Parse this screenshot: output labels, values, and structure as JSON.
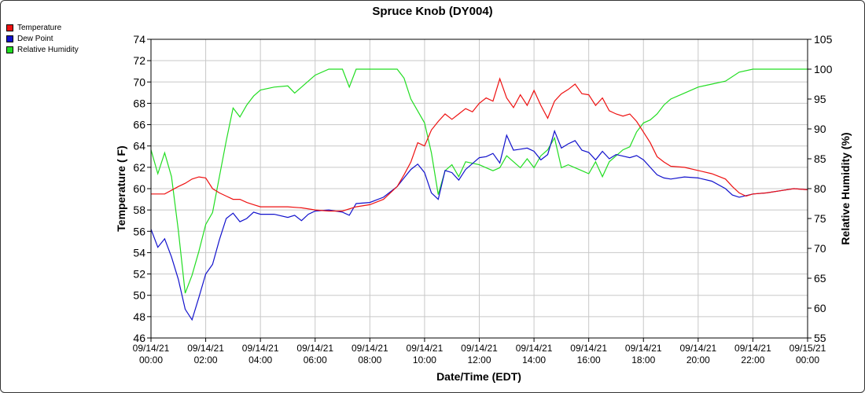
{
  "chart_data": {
    "type": "line",
    "title": "Spruce Knob (DY004)",
    "xlabel": "Date/Time (EDT)",
    "ylabel_left": "Temperature ( F)",
    "ylabel_right": "Relative Humidity (%)",
    "ylim_left": [
      46,
      74
    ],
    "ylim_right": [
      55,
      105
    ],
    "left_ticks": [
      "46",
      "48",
      "50",
      "52",
      "54",
      "56",
      "58",
      "60",
      "62",
      "64",
      "66",
      "68",
      "70",
      "72",
      "74"
    ],
    "right_ticks": [
      "55",
      "60",
      "65",
      "70",
      "75",
      "80",
      "85",
      "90",
      "95",
      "100",
      "105"
    ],
    "x_ticks": [
      {
        "date": "09/14/21",
        "time": "00:00"
      },
      {
        "date": "09/14/21",
        "time": "02:00"
      },
      {
        "date": "09/14/21",
        "time": "04:00"
      },
      {
        "date": "09/14/21",
        "time": "06:00"
      },
      {
        "date": "09/14/21",
        "time": "08:00"
      },
      {
        "date": "09/14/21",
        "time": "10:00"
      },
      {
        "date": "09/14/21",
        "time": "12:00"
      },
      {
        "date": "09/14/21",
        "time": "14:00"
      },
      {
        "date": "09/14/21",
        "time": "16:00"
      },
      {
        "date": "09/14/21",
        "time": "18:00"
      },
      {
        "date": "09/14/21",
        "time": "20:00"
      },
      {
        "date": "09/14/21",
        "time": "22:00"
      },
      {
        "date": "09/15/21",
        "time": "00:00"
      }
    ],
    "grid": true,
    "legend_position": "top-left",
    "series": [
      {
        "name": "Temperature",
        "color": "#ee1111",
        "axis": "left",
        "points": [
          [
            0,
            59.5
          ],
          [
            0.5,
            59.5
          ],
          [
            1,
            60.2
          ],
          [
            1.25,
            60.5
          ],
          [
            1.5,
            60.9
          ],
          [
            1.75,
            61.1
          ],
          [
            2,
            61.0
          ],
          [
            2.25,
            60.0
          ],
          [
            2.5,
            59.6
          ],
          [
            2.75,
            59.3
          ],
          [
            3,
            59.0
          ],
          [
            3.25,
            59.0
          ],
          [
            3.5,
            58.7
          ],
          [
            3.75,
            58.5
          ],
          [
            4,
            58.3
          ],
          [
            4.5,
            58.3
          ],
          [
            5,
            58.3
          ],
          [
            5.5,
            58.2
          ],
          [
            6,
            58.0
          ],
          [
            6.5,
            57.9
          ],
          [
            7,
            57.9
          ],
          [
            7.5,
            58.3
          ],
          [
            8,
            58.5
          ],
          [
            8.5,
            59.0
          ],
          [
            9,
            60.2
          ],
          [
            9.25,
            61.3
          ],
          [
            9.5,
            62.5
          ],
          [
            9.75,
            64.3
          ],
          [
            10,
            64.0
          ],
          [
            10.25,
            65.5
          ],
          [
            10.5,
            66.3
          ],
          [
            10.75,
            67.0
          ],
          [
            11,
            66.5
          ],
          [
            11.25,
            67.0
          ],
          [
            11.5,
            67.5
          ],
          [
            11.75,
            67.2
          ],
          [
            12,
            68.0
          ],
          [
            12.25,
            68.5
          ],
          [
            12.5,
            68.2
          ],
          [
            12.75,
            70.3
          ],
          [
            13,
            68.5
          ],
          [
            13.25,
            67.6
          ],
          [
            13.5,
            68.8
          ],
          [
            13.75,
            67.8
          ],
          [
            14,
            69.2
          ],
          [
            14.25,
            67.8
          ],
          [
            14.5,
            66.6
          ],
          [
            14.75,
            68.2
          ],
          [
            15,
            68.9
          ],
          [
            15.25,
            69.3
          ],
          [
            15.5,
            69.8
          ],
          [
            15.75,
            68.9
          ],
          [
            16,
            68.8
          ],
          [
            16.25,
            67.8
          ],
          [
            16.5,
            68.5
          ],
          [
            16.75,
            67.3
          ],
          [
            17,
            67.0
          ],
          [
            17.25,
            66.8
          ],
          [
            17.5,
            67.0
          ],
          [
            17.75,
            66.3
          ],
          [
            18,
            65.3
          ],
          [
            18.25,
            64.3
          ],
          [
            18.5,
            63.0
          ],
          [
            18.75,
            62.5
          ],
          [
            19,
            62.1
          ],
          [
            19.5,
            62.0
          ],
          [
            20,
            61.7
          ],
          [
            20.5,
            61.4
          ],
          [
            21,
            60.9
          ],
          [
            21.25,
            60.2
          ],
          [
            21.5,
            59.6
          ],
          [
            21.75,
            59.3
          ],
          [
            22,
            59.5
          ],
          [
            22.5,
            59.6
          ],
          [
            23,
            59.8
          ],
          [
            23.5,
            60.0
          ],
          [
            24,
            59.9
          ]
        ]
      },
      {
        "name": "Dew Point",
        "color": "#1111cc",
        "axis": "left",
        "points": [
          [
            0,
            56.2
          ],
          [
            0.25,
            54.5
          ],
          [
            0.5,
            55.3
          ],
          [
            0.75,
            53.6
          ],
          [
            1,
            51.5
          ],
          [
            1.25,
            48.7
          ],
          [
            1.5,
            47.7
          ],
          [
            1.75,
            49.8
          ],
          [
            2,
            52.0
          ],
          [
            2.25,
            52.9
          ],
          [
            2.5,
            55.2
          ],
          [
            2.75,
            57.2
          ],
          [
            3,
            57.7
          ],
          [
            3.25,
            56.9
          ],
          [
            3.5,
            57.2
          ],
          [
            3.75,
            57.8
          ],
          [
            4,
            57.6
          ],
          [
            4.5,
            57.6
          ],
          [
            5,
            57.3
          ],
          [
            5.25,
            57.5
          ],
          [
            5.5,
            57.0
          ],
          [
            5.75,
            57.6
          ],
          [
            6,
            57.9
          ],
          [
            6.5,
            58.0
          ],
          [
            7,
            57.8
          ],
          [
            7.25,
            57.5
          ],
          [
            7.5,
            58.6
          ],
          [
            8,
            58.7
          ],
          [
            8.5,
            59.2
          ],
          [
            9,
            60.2
          ],
          [
            9.25,
            61.0
          ],
          [
            9.5,
            61.8
          ],
          [
            9.75,
            62.3
          ],
          [
            10,
            61.5
          ],
          [
            10.25,
            59.6
          ],
          [
            10.5,
            59.0
          ],
          [
            10.75,
            61.7
          ],
          [
            11,
            61.5
          ],
          [
            11.25,
            60.8
          ],
          [
            11.5,
            61.8
          ],
          [
            12,
            62.9
          ],
          [
            12.25,
            63.0
          ],
          [
            12.5,
            63.3
          ],
          [
            12.75,
            62.4
          ],
          [
            13,
            65.0
          ],
          [
            13.25,
            63.6
          ],
          [
            13.5,
            63.7
          ],
          [
            13.75,
            63.8
          ],
          [
            14,
            63.5
          ],
          [
            14.25,
            62.7
          ],
          [
            14.5,
            63.2
          ],
          [
            14.75,
            65.4
          ],
          [
            15,
            63.8
          ],
          [
            15.25,
            64.2
          ],
          [
            15.5,
            64.5
          ],
          [
            15.75,
            63.6
          ],
          [
            16,
            63.4
          ],
          [
            16.25,
            62.7
          ],
          [
            16.5,
            63.5
          ],
          [
            16.75,
            62.8
          ],
          [
            17,
            63.2
          ],
          [
            17.5,
            62.9
          ],
          [
            17.75,
            63.1
          ],
          [
            18,
            62.7
          ],
          [
            18.25,
            62.0
          ],
          [
            18.5,
            61.3
          ],
          [
            18.75,
            61.0
          ],
          [
            19,
            60.9
          ],
          [
            19.5,
            61.1
          ],
          [
            20,
            61.0
          ],
          [
            20.5,
            60.7
          ],
          [
            21,
            60.0
          ],
          [
            21.25,
            59.4
          ],
          [
            21.5,
            59.2
          ],
          [
            22,
            59.5
          ],
          [
            22.5,
            59.6
          ],
          [
            23,
            59.8
          ],
          [
            23.5,
            60.0
          ],
          [
            24,
            59.9
          ]
        ]
      },
      {
        "name": "Relative Humidity",
        "color": "#22dd22",
        "axis": "right",
        "points": [
          [
            0,
            86.5
          ],
          [
            0.25,
            82.5
          ],
          [
            0.5,
            86.0
          ],
          [
            0.75,
            82.0
          ],
          [
            1,
            73.0
          ],
          [
            1.25,
            62.5
          ],
          [
            1.5,
            65.5
          ],
          [
            1.75,
            69.5
          ],
          [
            2,
            74.0
          ],
          [
            2.25,
            76.0
          ],
          [
            2.5,
            82.0
          ],
          [
            2.75,
            88.0
          ],
          [
            3,
            93.5
          ],
          [
            3.25,
            92.0
          ],
          [
            3.5,
            94.0
          ],
          [
            3.75,
            95.5
          ],
          [
            4,
            96.5
          ],
          [
            4.5,
            97.0
          ],
          [
            5,
            97.2
          ],
          [
            5.25,
            96.0
          ],
          [
            5.5,
            97.0
          ],
          [
            5.75,
            98.0
          ],
          [
            6,
            99.0
          ],
          [
            6.5,
            100.0
          ],
          [
            7,
            100.0
          ],
          [
            7.25,
            97.0
          ],
          [
            7.5,
            100.0
          ],
          [
            8,
            100.0
          ],
          [
            8.5,
            100.0
          ],
          [
            9,
            100.0
          ],
          [
            9.25,
            98.5
          ],
          [
            9.5,
            95.0
          ],
          [
            9.75,
            93.0
          ],
          [
            10,
            91.0
          ],
          [
            10.25,
            86.0
          ],
          [
            10.5,
            79.0
          ],
          [
            10.75,
            83.0
          ],
          [
            11,
            84.0
          ],
          [
            11.25,
            82.0
          ],
          [
            11.5,
            84.5
          ],
          [
            12,
            84.0
          ],
          [
            12.25,
            83.5
          ],
          [
            12.5,
            83.0
          ],
          [
            12.75,
            83.5
          ],
          [
            13,
            85.5
          ],
          [
            13.25,
            84.5
          ],
          [
            13.5,
            83.5
          ],
          [
            13.75,
            85.0
          ],
          [
            14,
            83.5
          ],
          [
            14.25,
            85.5
          ],
          [
            14.5,
            86.5
          ],
          [
            14.75,
            88.5
          ],
          [
            15,
            83.5
          ],
          [
            15.25,
            84.0
          ],
          [
            15.5,
            83.5
          ],
          [
            15.75,
            83.0
          ],
          [
            16,
            82.5
          ],
          [
            16.25,
            84.5
          ],
          [
            16.5,
            82.0
          ],
          [
            16.75,
            84.5
          ],
          [
            17,
            85.5
          ],
          [
            17.25,
            86.5
          ],
          [
            17.5,
            87.0
          ],
          [
            17.75,
            89.5
          ],
          [
            18,
            91.0
          ],
          [
            18.25,
            91.5
          ],
          [
            18.5,
            92.5
          ],
          [
            18.75,
            94.0
          ],
          [
            19,
            95.0
          ],
          [
            19.5,
            96.0
          ],
          [
            20,
            97.0
          ],
          [
            20.5,
            97.5
          ],
          [
            21,
            98.0
          ],
          [
            21.5,
            99.5
          ],
          [
            22,
            100.0
          ],
          [
            23,
            100.0
          ],
          [
            24,
            100.0
          ]
        ]
      }
    ]
  }
}
